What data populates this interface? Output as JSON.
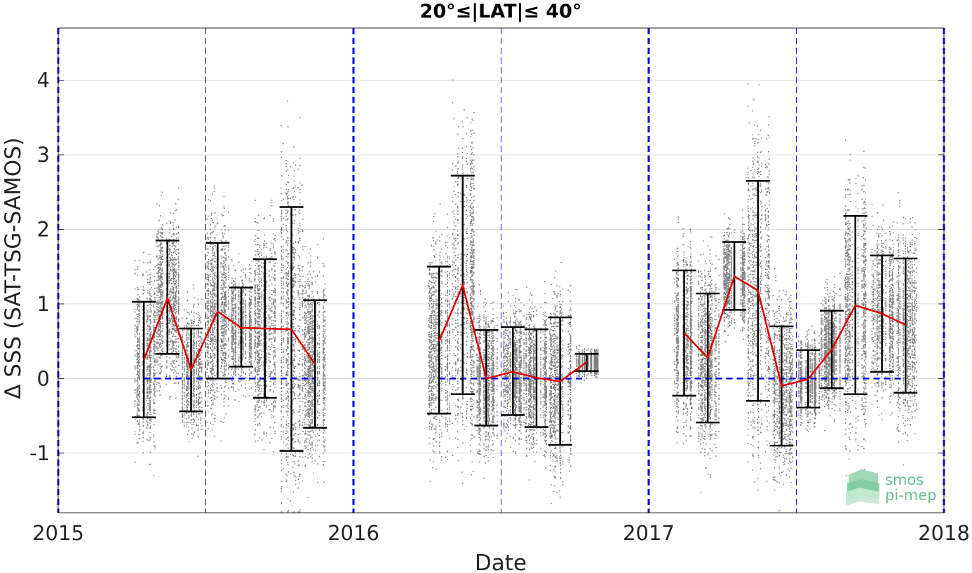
{
  "chart_data": {
    "type": "scatter",
    "title": "20°≤|LAT|≤ 40°",
    "xlabel": "Date",
    "ylabel": "Δ SSS (SAT-TSG-SAMOS)",
    "xlim": [
      2015.0,
      2018.0
    ],
    "ylim": [
      -1.8,
      4.7
    ],
    "x_ticks": [
      2015,
      2016,
      2017,
      2018
    ],
    "x_tick_labels": [
      "2015",
      "2016",
      "2017",
      "2018"
    ],
    "y_ticks": [
      -1,
      0,
      1,
      2,
      3,
      4
    ],
    "y_tick_labels": [
      "-1",
      "0",
      "1",
      "2",
      "3",
      "4"
    ],
    "grid": true,
    "year_boundary_lines": [
      2015.0,
      2016.0,
      2017.0,
      2018.0
    ],
    "mid_year_lines": [
      2015.5,
      2016.5,
      2017.5
    ],
    "zero_line_segments": [
      [
        2015.29,
        2015.87
      ],
      [
        2016.29,
        2016.79
      ],
      [
        2017.12,
        2017.87
      ]
    ],
    "series": [
      {
        "values": [
          {
            "x": 2015.29,
            "mean": 0.25,
            "upper": 1.03,
            "lower": -0.52
          },
          {
            "x": 2015.37,
            "mean": 1.08,
            "upper": 1.85,
            "lower": 0.33
          },
          {
            "x": 2015.45,
            "mean": 0.12,
            "upper": 0.67,
            "lower": -0.44
          },
          {
            "x": 2015.54,
            "mean": 0.9,
            "upper": 1.82,
            "lower": 0.0
          },
          {
            "x": 2015.62,
            "mean": 0.68,
            "upper": 1.22,
            "lower": 0.16
          },
          {
            "x": 2015.7,
            "mean": 0.67,
            "upper": 1.6,
            "lower": -0.26
          },
          {
            "x": 2015.79,
            "mean": 0.66,
            "upper": 2.3,
            "lower": -0.97
          },
          {
            "x": 2015.87,
            "mean": 0.19,
            "upper": 1.05,
            "lower": -0.66
          },
          {
            "x": 2016.29,
            "mean": 0.5,
            "upper": 1.5,
            "lower": -0.47
          },
          {
            "x": 2016.37,
            "mean": 1.25,
            "upper": 2.72,
            "lower": -0.21
          },
          {
            "x": 2016.45,
            "mean": 0.0,
            "upper": 0.65,
            "lower": -0.63
          },
          {
            "x": 2016.54,
            "mean": 0.09,
            "upper": 0.69,
            "lower": -0.49
          },
          {
            "x": 2016.62,
            "mean": 0.01,
            "upper": 0.66,
            "lower": -0.65
          },
          {
            "x": 2016.7,
            "mean": -0.04,
            "upper": 0.82,
            "lower": -0.89
          },
          {
            "x": 2016.79,
            "mean": 0.22,
            "upper": 0.33,
            "lower": 0.1
          },
          {
            "x": 2017.12,
            "mean": 0.61,
            "upper": 1.45,
            "lower": -0.23
          },
          {
            "x": 2017.2,
            "mean": 0.28,
            "upper": 1.14,
            "lower": -0.59
          },
          {
            "x": 2017.29,
            "mean": 1.37,
            "upper": 1.83,
            "lower": 0.92
          },
          {
            "x": 2017.37,
            "mean": 1.18,
            "upper": 2.65,
            "lower": -0.3
          },
          {
            "x": 2017.45,
            "mean": -0.1,
            "upper": 0.7,
            "lower": -0.9
          },
          {
            "x": 2017.54,
            "mean": -0.01,
            "upper": 0.38,
            "lower": -0.39
          },
          {
            "x": 2017.62,
            "mean": 0.39,
            "upper": 0.91,
            "lower": -0.13
          },
          {
            "x": 2017.7,
            "mean": 0.98,
            "upper": 2.18,
            "lower": -0.21
          },
          {
            "x": 2017.79,
            "mean": 0.87,
            "upper": 1.65,
            "lower": 0.09
          },
          {
            "x": 2017.87,
            "mean": 0.72,
            "upper": 1.61,
            "lower": -0.19
          }
        ],
        "mean_line_segments": [
          [
            0,
            7
          ],
          [
            8,
            14
          ],
          [
            15,
            24
          ]
        ]
      }
    ],
    "colors": {
      "scatter": "#808080",
      "mean_line": "#e00000",
      "error_bars": "#000000",
      "blue_lines": "#0000e6",
      "grid": "#dcdcdc"
    },
    "logo": {
      "line1": "smos",
      "line2": "pi-mep"
    }
  }
}
